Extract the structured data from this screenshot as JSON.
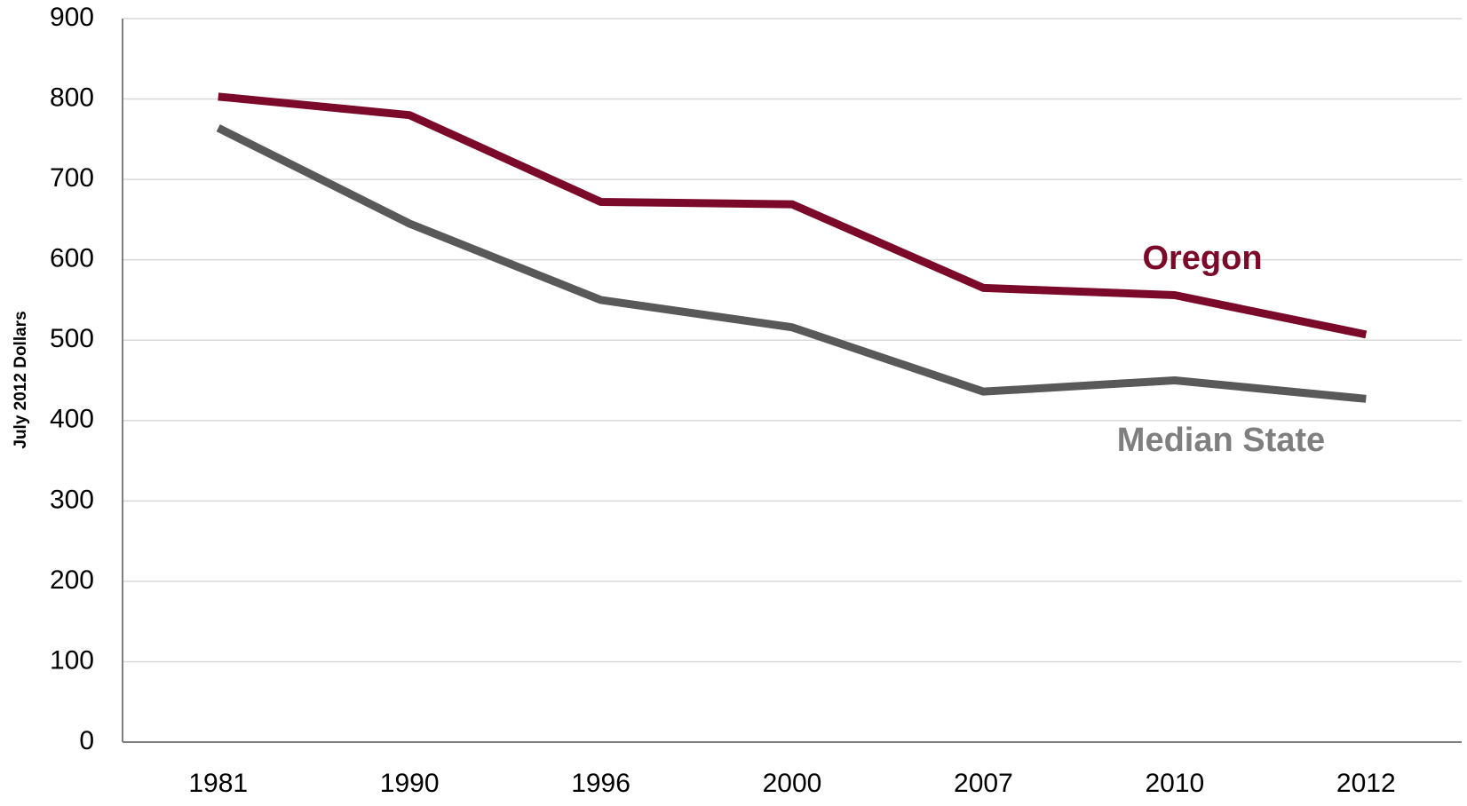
{
  "chart_data": {
    "type": "line",
    "y_label": "July 2012 Dollars",
    "categories": [
      "1981",
      "1990",
      "1996",
      "2000",
      "2007",
      "2010",
      "2012"
    ],
    "series": [
      {
        "name": "Oregon",
        "color": "#7b0a2a",
        "values": [
          803,
          780,
          672,
          669,
          565,
          556,
          507
        ]
      },
      {
        "name": "Median State",
        "color": "#595959",
        "values": [
          764,
          645,
          550,
          516,
          436,
          450,
          427
        ]
      }
    ],
    "ylim": [
      0,
      900
    ],
    "yticks": [
      0,
      100,
      200,
      300,
      400,
      500,
      600,
      700,
      800,
      900
    ],
    "grid": true
  }
}
